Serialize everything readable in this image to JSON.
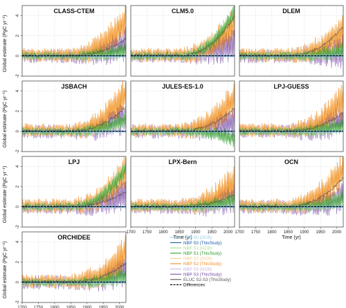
{
  "figure": {
    "ylabel": "Global estimate (PgC yr⁻¹)",
    "xlabel": "Time (yr)"
  },
  "colors": {
    "nbp_s0_gcb": "#8ecde8",
    "nbp_s0_this": "#1f5aa8",
    "nbp_s1_gcb": "#a8dc8c",
    "nbp_s1_this": "#2e9c2e",
    "nbp_s2_gcb": "#f8cb86",
    "nbp_s2_this": "#f08c18",
    "nbp_s3_gcb": "#c8b4de",
    "nbp_s3_this": "#7a4ea6",
    "elucs2s3": "#555555",
    "differences": "#000000"
  },
  "legend": [
    {
      "key": "nbp_s0_gcb",
      "label": "NBP S0 (GCB)",
      "style": "line"
    },
    {
      "key": "nbp_s0_this",
      "label": "NBP S0 (ThisStudy)",
      "style": "line"
    },
    {
      "key": "nbp_s1_gcb",
      "label": "NBP S1 (GCB)",
      "style": "line"
    },
    {
      "key": "nbp_s1_this",
      "label": "NBP S1 (ThisStudy)",
      "style": "line"
    },
    {
      "key": "nbp_s2_gcb",
      "label": "NBP S2 (GCB)",
      "style": "line"
    },
    {
      "key": "nbp_s2_this",
      "label": "NBP S2 (ThisStudy)",
      "style": "line"
    },
    {
      "key": "nbp_s3_gcb",
      "label": "NBP S3 (GCB)",
      "style": "line"
    },
    {
      "key": "nbp_s3_this",
      "label": "NBP S3 (ThisStudy)",
      "style": "line"
    },
    {
      "key": "elucs2s3",
      "label": "ELUC S2-S3 (ThisStudy)",
      "style": "line"
    },
    {
      "key": "differences",
      "label": "Differences",
      "style": "dashed"
    }
  ],
  "chart_data": {
    "type": "line",
    "x_range": [
      1700,
      2020
    ],
    "ylim": [
      -2,
      5
    ],
    "x_ticks": [
      1700,
      1750,
      1800,
      1850,
      1900,
      1950,
      2000
    ],
    "y_ticks": [
      -2,
      0,
      2,
      4
    ],
    "grid": true,
    "legend_position": "bottom-right",
    "panels": [
      {
        "title": "CLASS-CTEM",
        "elucs2s3_end": 1.7,
        "s2_end": 3.6,
        "s3_end": 1.2,
        "s1_end": 0.6
      },
      {
        "title": "CLM5.0",
        "elucs2s3_end": 3.9,
        "s2_end": 3.3,
        "s3_end": 1.3,
        "s1_end": 4.4
      },
      {
        "title": "DLEM",
        "elucs2s3_end": 2.9,
        "s2_end": 2.6,
        "s3_end": 0.5,
        "s1_end": 0.5
      },
      {
        "title": "JSBACH",
        "elucs2s3_end": 2.4,
        "s2_end": 3.9,
        "s3_end": 1.4,
        "s1_end": 1.2
      },
      {
        "title": "JULES-ES-1.0",
        "elucs2s3_end": 2.3,
        "s2_end": 3.3,
        "s3_end": 1.1,
        "s1_end": -0.7
      },
      {
        "title": "LPJ-GUESS",
        "elucs2s3_end": 1.8,
        "s2_end": 3.1,
        "s3_end": 1.2,
        "s1_end": 0.6
      },
      {
        "title": "LPJ",
        "elucs2s3_end": 1.5,
        "s2_end": 3.6,
        "s3_end": 1.4,
        "s1_end": 3.9
      },
      {
        "title": "LPX-Bern",
        "elucs2s3_end": 1.2,
        "s2_end": 2.5,
        "s3_end": 1.1,
        "s1_end": 0.7
      },
      {
        "title": "OCN",
        "elucs2s3_end": 2.9,
        "s2_end": 3.8,
        "s3_end": 1.0,
        "s1_end": 0.8
      },
      {
        "title": "ORCHIDEE",
        "elucs2s3_end": 1.9,
        "s2_end": 2.9,
        "s3_end": 1.3,
        "s1_end": 0.6
      }
    ]
  }
}
